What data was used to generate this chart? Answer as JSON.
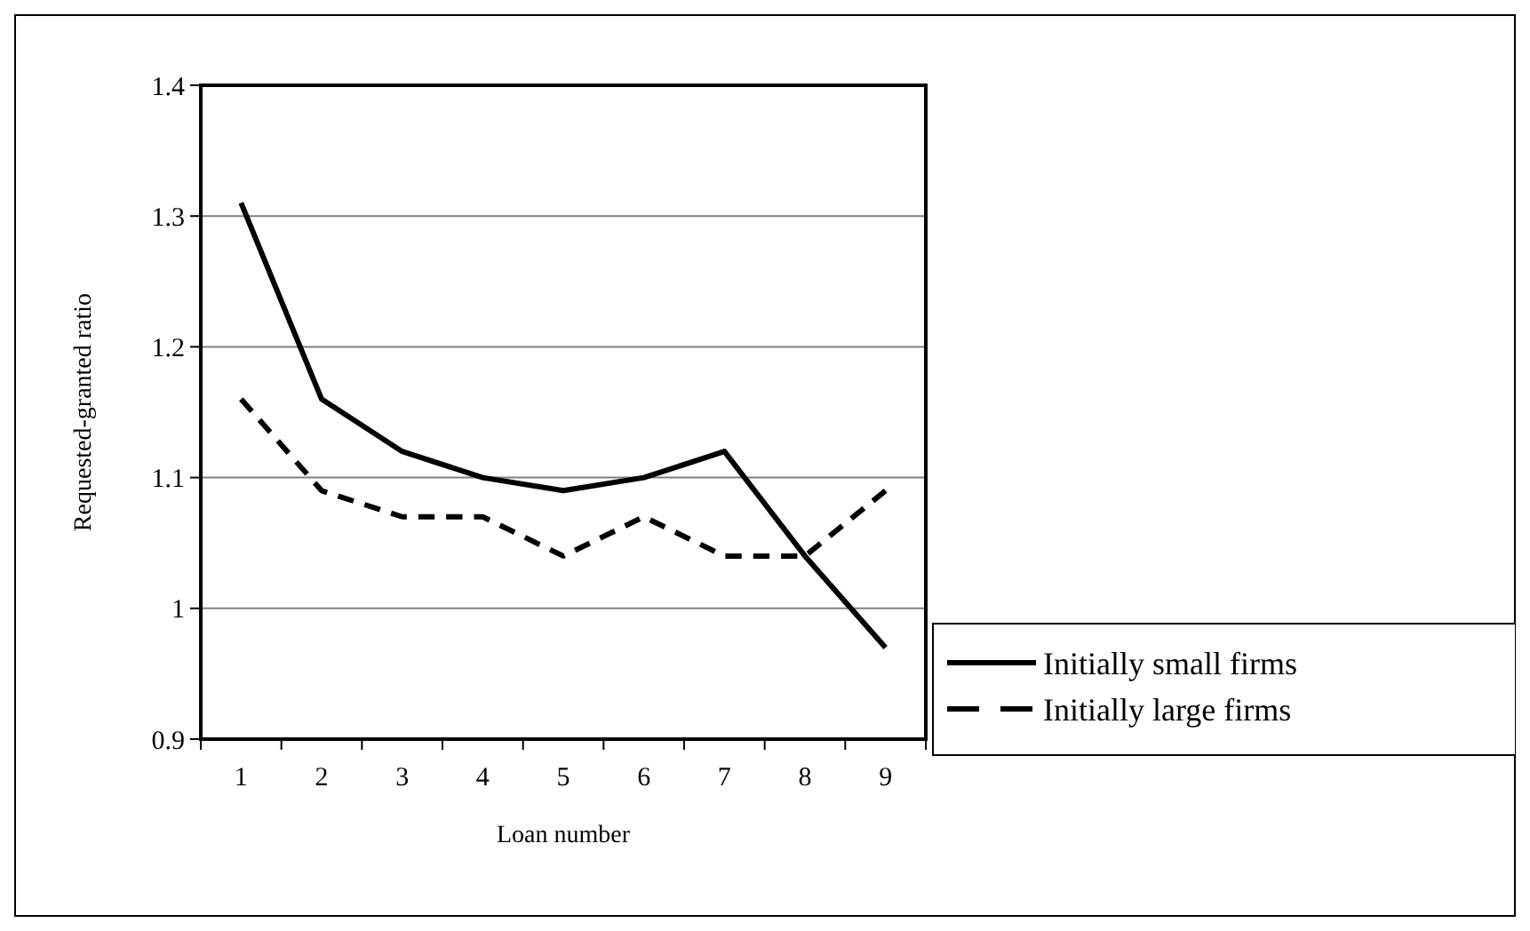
{
  "chart_data": {
    "type": "line",
    "xlabel": "Loan number",
    "ylabel": "Requested-granted ratio",
    "categories": [
      "1",
      "2",
      "3",
      "4",
      "5",
      "6",
      "7",
      "8",
      "9"
    ],
    "series": [
      {
        "name": "Initially small firms",
        "color": "#000000",
        "line_style": "solid",
        "values": [
          1.31,
          1.16,
          1.12,
          1.1,
          1.09,
          1.1,
          1.12,
          1.04,
          0.97
        ]
      },
      {
        "name": "Initially large firms",
        "color": "#000000",
        "line_style": "dashed",
        "values": [
          1.16,
          1.09,
          1.07,
          1.07,
          1.04,
          1.07,
          1.04,
          1.04,
          1.09
        ]
      }
    ],
    "ylim": [
      0.9,
      1.4
    ],
    "yticks": [
      0.9,
      1,
      1.1,
      1.2,
      1.3,
      1.4
    ],
    "grid": "y",
    "legend": "right",
    "marker": "none"
  }
}
